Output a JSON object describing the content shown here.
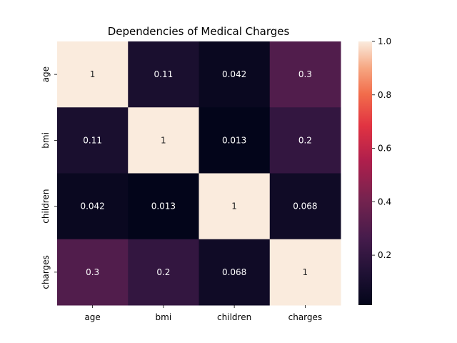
{
  "chart_data": {
    "type": "heatmap",
    "title": "Dependencies of Medical Charges",
    "x_labels": [
      "age",
      "bmi",
      "children",
      "charges"
    ],
    "y_labels": [
      "age",
      "bmi",
      "children",
      "charges"
    ],
    "values": [
      [
        1,
        0.11,
        0.042,
        0.3
      ],
      [
        0.11,
        1,
        0.013,
        0.2
      ],
      [
        0.042,
        0.013,
        1,
        0.068
      ],
      [
        0.3,
        0.2,
        0.068,
        1
      ]
    ],
    "cell_labels": [
      [
        "1",
        "0.11",
        "0.042",
        "0.3"
      ],
      [
        "0.11",
        "1",
        "0.013",
        "0.2"
      ],
      [
        "0.042",
        "0.013",
        "1",
        "0.068"
      ],
      [
        "0.3",
        "0.2",
        "0.068",
        "1"
      ]
    ],
    "colorbar": {
      "range": [
        0.013,
        1.0
      ],
      "ticks": [
        0.2,
        0.4,
        0.6,
        0.8,
        1.0
      ],
      "tick_labels": [
        "0.2",
        "0.4",
        "0.6",
        "0.8",
        "1.0"
      ],
      "colormap": "rocket"
    }
  }
}
